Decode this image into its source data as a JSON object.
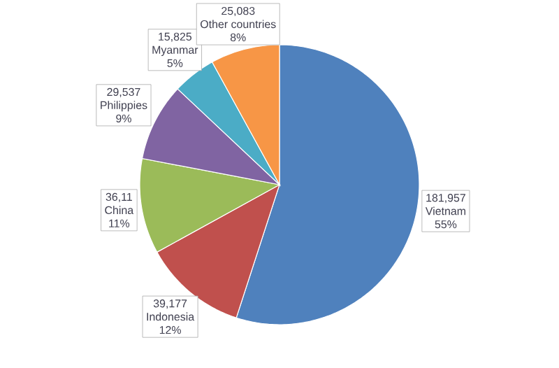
{
  "chart_data": {
    "type": "pie",
    "categories": [
      "Vietnam",
      "Indonesia",
      "China",
      "Philippies",
      "Myanmar",
      "Other countries"
    ],
    "values": [
      55,
      12,
      11,
      9,
      5,
      8
    ],
    "value_labels": [
      "55%",
      "12%",
      "11%",
      "9%",
      "5%",
      "8%"
    ],
    "annotations": [
      "181,957",
      "39,177",
      "36,11",
      "29,537",
      "15,825",
      "25,083"
    ],
    "colors": [
      "#4f81bd",
      "#c0504d",
      "#9bbb59",
      "#8064a2",
      "#4bacc6",
      "#f79646"
    ]
  }
}
